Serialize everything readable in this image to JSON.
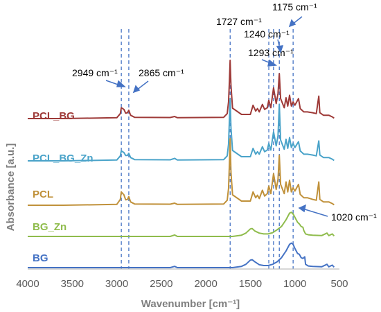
{
  "chart_data": {
    "type": "line",
    "xlabel": "Wavenumber [cm⁻¹]",
    "ylabel": "Absorbance [a.u.]",
    "xlim": [
      4000,
      500
    ],
    "xticks": [
      4000,
      3500,
      3000,
      2500,
      2000,
      1500,
      1000,
      500
    ],
    "xtick_labels": [
      "4000",
      "3500",
      "3000",
      "2500",
      "2000",
      "1500",
      "1000",
      "500"
    ],
    "y_ticks_visible": false,
    "grid": false,
    "series": [
      {
        "name": "PCL_BG",
        "color": "#9e3a38",
        "baseline": 0,
        "points": [
          [
            4000,
            0
          ],
          [
            3600,
            0
          ],
          [
            3000,
            0.2
          ],
          [
            2960,
            1.2
          ],
          [
            2949,
            2.6
          ],
          [
            2920,
            2.2
          ],
          [
            2900,
            1.3
          ],
          [
            2880,
            1.4
          ],
          [
            2865,
            2.0
          ],
          [
            2845,
            0.8
          ],
          [
            2800,
            0.3
          ],
          [
            2400,
            0.25
          ],
          [
            2350,
            0.5
          ],
          [
            2320,
            0.2
          ],
          [
            1800,
            0.3
          ],
          [
            1760,
            1.2
          ],
          [
            1745,
            4
          ],
          [
            1735,
            9
          ],
          [
            1727,
            14
          ],
          [
            1718,
            8
          ],
          [
            1700,
            2.5
          ],
          [
            1600,
            1
          ],
          [
            1500,
            1
          ],
          [
            1470,
            3.2
          ],
          [
            1440,
            1.8
          ],
          [
            1420,
            2.4
          ],
          [
            1400,
            1.6
          ],
          [
            1365,
            3.4
          ],
          [
            1340,
            2.2
          ],
          [
            1310,
            2.6
          ],
          [
            1293,
            4.4
          ],
          [
            1270,
            2.6
          ],
          [
            1240,
            7.4
          ],
          [
            1210,
            3.6
          ],
          [
            1190,
            6
          ],
          [
            1175,
            10.8
          ],
          [
            1160,
            4.8
          ],
          [
            1120,
            2.6
          ],
          [
            1100,
            5
          ],
          [
            1080,
            3
          ],
          [
            1060,
            5.6
          ],
          [
            1040,
            3
          ],
          [
            1020,
            4
          ],
          [
            1000,
            3.2
          ],
          [
            960,
            4.8
          ],
          [
            940,
            2.4
          ],
          [
            900,
            1.6
          ],
          [
            860,
            1.6
          ],
          [
            800,
            1.4
          ],
          [
            760,
            1.2
          ],
          [
            732,
            5.4
          ],
          [
            720,
            1.4
          ],
          [
            680,
            0.8
          ],
          [
            620,
            0.8
          ],
          [
            580,
            0.4
          ],
          [
            560,
            0.1
          ]
        ]
      },
      {
        "name": "PCL_BG_Zn",
        "color": "#4aa3c9",
        "baseline": 0,
        "points": [
          [
            4000,
            0
          ],
          [
            3600,
            0
          ],
          [
            3000,
            0.2
          ],
          [
            2960,
            1.2
          ],
          [
            2949,
            2.4
          ],
          [
            2920,
            2.0
          ],
          [
            2900,
            1.3
          ],
          [
            2880,
            1.3
          ],
          [
            2865,
            1.8
          ],
          [
            2845,
            0.8
          ],
          [
            2800,
            0.3
          ],
          [
            2400,
            0.25
          ],
          [
            2350,
            0.6
          ],
          [
            2320,
            0.2
          ],
          [
            1800,
            0.3
          ],
          [
            1760,
            1.2
          ],
          [
            1745,
            4
          ],
          [
            1735,
            10
          ],
          [
            1727,
            15
          ],
          [
            1718,
            8
          ],
          [
            1700,
            2.5
          ],
          [
            1600,
            1
          ],
          [
            1500,
            1
          ],
          [
            1470,
            3
          ],
          [
            1440,
            1.6
          ],
          [
            1420,
            2.2
          ],
          [
            1400,
            1.6
          ],
          [
            1365,
            3.4
          ],
          [
            1340,
            2.2
          ],
          [
            1310,
            2.6
          ],
          [
            1293,
            4.2
          ],
          [
            1270,
            2.6
          ],
          [
            1240,
            7
          ],
          [
            1210,
            3.6
          ],
          [
            1190,
            6
          ],
          [
            1175,
            13.6
          ],
          [
            1160,
            5
          ],
          [
            1120,
            2.8
          ],
          [
            1100,
            5.2
          ],
          [
            1080,
            3
          ],
          [
            1060,
            5.6
          ],
          [
            1040,
            3.2
          ],
          [
            1020,
            4.2
          ],
          [
            1000,
            3.2
          ],
          [
            960,
            4.6
          ],
          [
            940,
            2.4
          ],
          [
            900,
            1.6
          ],
          [
            860,
            1.6
          ],
          [
            800,
            1.4
          ],
          [
            760,
            1.2
          ],
          [
            732,
            4.8
          ],
          [
            720,
            1.4
          ],
          [
            680,
            0.8
          ],
          [
            620,
            0.8
          ],
          [
            580,
            0.4
          ],
          [
            560,
            0.1
          ]
        ]
      },
      {
        "name": "PCL",
        "color": "#c0913a",
        "baseline": 0,
        "points": [
          [
            4000,
            0
          ],
          [
            3600,
            0
          ],
          [
            3000,
            0.2
          ],
          [
            2960,
            1.4
          ],
          [
            2949,
            3.2
          ],
          [
            2920,
            2.5
          ],
          [
            2900,
            1.3
          ],
          [
            2880,
            1.4
          ],
          [
            2865,
            2.1
          ],
          [
            2845,
            0.8
          ],
          [
            2800,
            0.3
          ],
          [
            2400,
            0.25
          ],
          [
            2350,
            0.5
          ],
          [
            2320,
            0.2
          ],
          [
            1800,
            0.3
          ],
          [
            1760,
            1.2
          ],
          [
            1745,
            4
          ],
          [
            1735,
            10
          ],
          [
            1727,
            16
          ],
          [
            1718,
            8
          ],
          [
            1700,
            2.5
          ],
          [
            1600,
            1
          ],
          [
            1500,
            1
          ],
          [
            1470,
            3.2
          ],
          [
            1440,
            1.8
          ],
          [
            1420,
            2.4
          ],
          [
            1400,
            1.6
          ],
          [
            1365,
            3.6
          ],
          [
            1340,
            2.2
          ],
          [
            1310,
            2.8
          ],
          [
            1293,
            4.6
          ],
          [
            1270,
            2.8
          ],
          [
            1240,
            7.6
          ],
          [
            1210,
            3.8
          ],
          [
            1190,
            6.2
          ],
          [
            1175,
            12
          ],
          [
            1160,
            5
          ],
          [
            1120,
            2.8
          ],
          [
            1100,
            5.6
          ],
          [
            1080,
            3.2
          ],
          [
            1060,
            6
          ],
          [
            1040,
            3.2
          ],
          [
            1020,
            4.2
          ],
          [
            1000,
            3.4
          ],
          [
            960,
            5
          ],
          [
            940,
            2.6
          ],
          [
            900,
            1.8
          ],
          [
            860,
            1.8
          ],
          [
            800,
            1.4
          ],
          [
            760,
            1.2
          ],
          [
            732,
            5.6
          ],
          [
            720,
            1.4
          ],
          [
            680,
            0.8
          ],
          [
            620,
            0.8
          ],
          [
            580,
            0.4
          ],
          [
            560,
            0.1
          ]
        ]
      },
      {
        "name": "BG_Zn",
        "color": "#8fbc4c",
        "baseline": 0,
        "points": [
          [
            4000,
            0
          ],
          [
            3000,
            0
          ],
          [
            2400,
            0
          ],
          [
            2350,
            0.35
          ],
          [
            2320,
            0
          ],
          [
            1700,
            0
          ],
          [
            1600,
            0.3
          ],
          [
            1550,
            0.8
          ],
          [
            1500,
            1.8
          ],
          [
            1480,
            1.9
          ],
          [
            1450,
            1.3
          ],
          [
            1400,
            0.8
          ],
          [
            1350,
            0.6
          ],
          [
            1300,
            0.6
          ],
          [
            1250,
            0.9
          ],
          [
            1200,
            1.6
          ],
          [
            1150,
            2.4
          ],
          [
            1100,
            4.0
          ],
          [
            1060,
            5.6
          ],
          [
            1040,
            5.8
          ],
          [
            1020,
            5.4
          ],
          [
            1000,
            4.6
          ],
          [
            970,
            3.4
          ],
          [
            950,
            3.0
          ],
          [
            930,
            2.4
          ],
          [
            910,
            2.2
          ],
          [
            900,
            1.4
          ],
          [
            880,
            0.6
          ],
          [
            850,
            0.4
          ],
          [
            800,
            0.3
          ],
          [
            700,
            0.2
          ],
          [
            640,
            0.8
          ],
          [
            620,
            0.2
          ],
          [
            580,
            0.6
          ],
          [
            560,
            0.1
          ]
        ]
      },
      {
        "name": "BG",
        "color": "#4472c4",
        "baseline": 0,
        "points": [
          [
            4000,
            0
          ],
          [
            3000,
            0
          ],
          [
            2400,
            0
          ],
          [
            2350,
            0.3
          ],
          [
            2320,
            0
          ],
          [
            1700,
            0
          ],
          [
            1600,
            0.3
          ],
          [
            1550,
            0.8
          ],
          [
            1500,
            1.8
          ],
          [
            1480,
            1.9
          ],
          [
            1450,
            1.4
          ],
          [
            1400,
            0.7
          ],
          [
            1350,
            0.5
          ],
          [
            1300,
            0.5
          ],
          [
            1250,
            0.8
          ],
          [
            1200,
            1.4
          ],
          [
            1150,
            2.4
          ],
          [
            1100,
            4.0
          ],
          [
            1060,
            5.6
          ],
          [
            1040,
            5.9
          ],
          [
            1020,
            5.6
          ],
          [
            1000,
            4.6
          ],
          [
            970,
            3.4
          ],
          [
            950,
            3.2
          ],
          [
            930,
            2.4
          ],
          [
            910,
            2.2
          ],
          [
            890,
            2.6
          ],
          [
            880,
            0.8
          ],
          [
            850,
            0.4
          ],
          [
            800,
            0.3
          ],
          [
            700,
            0.2
          ],
          [
            640,
            0.8
          ],
          [
            620,
            0.2
          ],
          [
            580,
            0.6
          ],
          [
            560,
            0.1
          ]
        ]
      }
    ],
    "reference_lines": [
      2949,
      2865,
      1727,
      1293,
      1240,
      1175,
      1020
    ],
    "annotations": [
      {
        "text": "2949 cm⁻¹",
        "target": 2949
      },
      {
        "text": "2865 cm⁻¹",
        "target": 2865
      },
      {
        "text": "1727 cm⁻¹",
        "target": 1727
      },
      {
        "text": "1240 cm⁻¹",
        "target": 1240
      },
      {
        "text": "1293 cm⁻¹",
        "target": 1293
      },
      {
        "text": "1175 cm⁻¹",
        "target": 1175
      },
      {
        "text": "1020 cm⁻¹",
        "target": 1020
      }
    ],
    "colors": {
      "reference_line": "#4472c4",
      "arrow": "#4472c4",
      "axis": "#bfbfbf"
    }
  }
}
